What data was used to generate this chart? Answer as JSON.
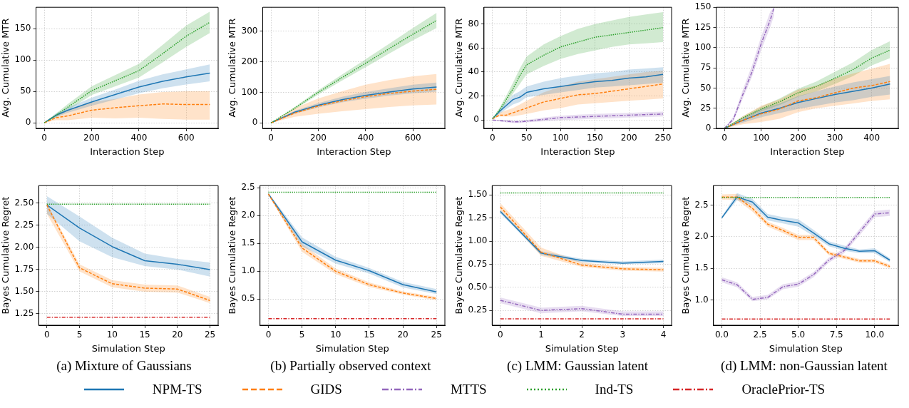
{
  "chart_data": [
    {
      "type": "line",
      "legend": "bottom",
      "xlabel": "Interaction Step",
      "ylabel": "Avg. Cumulative MTR",
      "xlim": [
        -35,
        735
      ],
      "xticks": [
        0,
        200,
        400,
        600
      ],
      "ylim": [
        -9,
        184
      ],
      "yticks": [
        0,
        50,
        100,
        150
      ],
      "grid": true,
      "series": [
        {
          "name": "NPM-TS",
          "color": "#1f77b4",
          "line_style": "solid",
          "x": [
            0,
            50,
            100,
            200,
            300,
            400,
            500,
            600,
            700
          ],
          "values": [
            0,
            12,
            20,
            33,
            45,
            57,
            66,
            73,
            79
          ],
          "lower": [
            0,
            9,
            16,
            27,
            37,
            47,
            55,
            61,
            66
          ],
          "upper": [
            0,
            15,
            24,
            40,
            53,
            67,
            77,
            85,
            93
          ]
        },
        {
          "name": "GIDS",
          "color": "#ff7f0e",
          "line_style": "dashed",
          "x": [
            0,
            50,
            100,
            200,
            300,
            400,
            500,
            600,
            700
          ],
          "values": [
            0,
            8,
            11,
            20,
            24,
            27,
            30,
            29,
            29
          ],
          "lower": [
            0,
            4,
            4,
            8,
            7,
            8,
            6,
            5,
            5
          ],
          "upper": [
            0,
            13,
            20,
            33,
            38,
            45,
            49,
            50,
            50
          ]
        },
        {
          "name": "Ind-TS",
          "color": "#2ca02c",
          "line_style": "dotted",
          "x": [
            0,
            50,
            100,
            200,
            300,
            400,
            500,
            600,
            700
          ],
          "values": [
            0,
            12,
            25,
            51,
            67,
            83,
            110,
            138,
            160
          ],
          "lower": [
            0,
            9,
            20,
            44,
            58,
            72,
            96,
            121,
            143
          ],
          "upper": [
            0,
            15,
            30,
            58,
            76,
            94,
            124,
            155,
            177
          ]
        }
      ]
    },
    {
      "type": "line",
      "legend": "bottom",
      "xlabel": "Interaction Step",
      "ylabel": "Avg. Cumulative MTR",
      "xlim": [
        -35,
        735
      ],
      "xticks": [
        0,
        200,
        400,
        600
      ],
      "ylim": [
        -18,
        378
      ],
      "yticks": [
        0,
        100,
        200,
        300
      ],
      "grid": true,
      "series": [
        {
          "name": "NPM-TS",
          "color": "#1f77b4",
          "line_style": "solid",
          "x": [
            0,
            100,
            200,
            300,
            400,
            500,
            600,
            700
          ],
          "values": [
            0,
            35,
            58,
            76,
            90,
            101,
            111,
            117
          ],
          "lower": [
            0,
            30,
            51,
            67,
            79,
            89,
            97,
            102
          ],
          "upper": [
            0,
            40,
            65,
            85,
            101,
            113,
            125,
            132
          ]
        },
        {
          "name": "GIDS",
          "color": "#ff7f0e",
          "line_style": "dashed",
          "x": [
            0,
            100,
            200,
            300,
            400,
            500,
            600,
            700
          ],
          "values": [
            0,
            32,
            55,
            72,
            86,
            96,
            104,
            110
          ],
          "lower": [
            0,
            20,
            30,
            38,
            45,
            52,
            57,
            60
          ],
          "upper": [
            0,
            48,
            80,
            103,
            125,
            140,
            152,
            160
          ]
        },
        {
          "name": "Ind-TS",
          "color": "#2ca02c",
          "line_style": "dotted",
          "x": [
            0,
            100,
            200,
            300,
            400,
            500,
            600,
            700
          ],
          "values": [
            0,
            48,
            100,
            148,
            195,
            243,
            290,
            335
          ],
          "lower": [
            0,
            44,
            93,
            138,
            182,
            227,
            270,
            310
          ],
          "upper": [
            0,
            52,
            107,
            158,
            208,
            259,
            310,
            360
          ]
        }
      ]
    },
    {
      "type": "line",
      "legend": "bottom",
      "xlabel": "Interaction Step",
      "ylabel": "Avg. Cumulative MTR",
      "xlim": [
        -12.5,
        262.5
      ],
      "xticks": [
        0,
        50,
        100,
        150,
        200,
        250
      ],
      "ylim": [
        -7,
        94
      ],
      "yticks": [
        0,
        20,
        40,
        60,
        80
      ],
      "grid": true,
      "series": [
        {
          "name": "NPM-TS",
          "color": "#1f77b4",
          "line_style": "solid",
          "x": [
            0,
            10,
            20,
            30,
            40,
            50,
            75,
            100,
            125,
            150,
            175,
            200,
            225,
            250
          ],
          "values": [
            1,
            7,
            12,
            17,
            19,
            23,
            26,
            28,
            30,
            32,
            33,
            35,
            36,
            38
          ],
          "lower": [
            1,
            5,
            9,
            13,
            15,
            19,
            21,
            23,
            25,
            27,
            28,
            29,
            30,
            31
          ],
          "upper": [
            1,
            9,
            15,
            21,
            24,
            28,
            32,
            35,
            37,
            39,
            40,
            42,
            43,
            44
          ]
        },
        {
          "name": "GIDS",
          "color": "#ff7f0e",
          "line_style": "dashed",
          "x": [
            0,
            10,
            20,
            30,
            40,
            50,
            75,
            100,
            125,
            150,
            175,
            200,
            225,
            250
          ],
          "values": [
            1,
            4,
            4,
            6,
            8,
            10,
            15,
            18,
            21,
            22,
            24,
            26,
            28,
            30
          ],
          "lower": [
            1,
            3,
            3,
            3,
            4,
            5,
            8,
            10,
            13,
            14,
            15,
            16,
            17,
            18
          ],
          "upper": [
            1,
            6,
            8,
            10,
            13,
            16,
            23,
            28,
            32,
            34,
            36,
            38,
            40,
            41
          ]
        },
        {
          "name": "MTTS",
          "color": "#9467bd",
          "line_style": "dashdot",
          "x": [
            0,
            10,
            20,
            30,
            40,
            50,
            75,
            100,
            125,
            150,
            175,
            200,
            225,
            250
          ],
          "values": [
            0,
            -0.5,
            -1,
            -1.5,
            -1.5,
            -1,
            0.5,
            2,
            2.5,
            3,
            3.5,
            4,
            4.5,
            5
          ],
          "lower": [
            0,
            -1,
            -2,
            -2.5,
            -2.5,
            -2,
            -1,
            0,
            0.5,
            1,
            1.5,
            2,
            2.5,
            3
          ],
          "upper": [
            0,
            0,
            0,
            -0.5,
            -0.5,
            0,
            2,
            3.5,
            4.5,
            5,
            5.5,
            6,
            6.5,
            7
          ]
        },
        {
          "name": "Ind-TS",
          "color": "#2ca02c",
          "line_style": "dotted",
          "x": [
            0,
            10,
            20,
            30,
            40,
            50,
            75,
            100,
            125,
            150,
            175,
            200,
            225,
            250
          ],
          "values": [
            1,
            8,
            17,
            26,
            37,
            46,
            54,
            61,
            65,
            69,
            71,
            73,
            75,
            77
          ],
          "lower": [
            1,
            6,
            14,
            22,
            30,
            38,
            45,
            51,
            55,
            58,
            61,
            63,
            64,
            65
          ],
          "upper": [
            1,
            10,
            20,
            31,
            43,
            53,
            63,
            70,
            76,
            80,
            83,
            86,
            88,
            90
          ]
        }
      ]
    },
    {
      "type": "line",
      "legend": "bottom",
      "xlabel": "Interaction Step",
      "ylabel": "Avg. Cumulative MTR",
      "xlim": [
        -22.5,
        472.5
      ],
      "xticks": [
        0,
        100,
        200,
        300,
        400
      ],
      "ylim": [
        0,
        150
      ],
      "yticks": [
        0,
        25,
        50,
        75,
        100,
        125,
        150
      ],
      "grid": true,
      "series": [
        {
          "name": "NPM-TS",
          "color": "#1f77b4",
          "line_style": "solid",
          "x": [
            0,
            50,
            100,
            150,
            200,
            250,
            300,
            350,
            400,
            450
          ],
          "values": [
            0,
            10,
            19,
            25,
            32,
            37,
            42,
            46,
            50,
            55
          ],
          "lower": [
            0,
            7,
            14,
            19,
            24,
            28,
            32,
            35,
            39,
            42
          ],
          "upper": [
            0,
            13,
            24,
            31,
            40,
            46,
            52,
            57,
            61,
            65
          ]
        },
        {
          "name": "GIDS",
          "color": "#ff7f0e",
          "line_style": "dashed",
          "x": [
            0,
            50,
            100,
            150,
            200,
            250,
            300,
            350,
            400,
            450
          ],
          "values": [
            0,
            10,
            18,
            24,
            34,
            38,
            44,
            50,
            53,
            58
          ],
          "lower": [
            0,
            5,
            8,
            12,
            20,
            25,
            28,
            31,
            34,
            36
          ],
          "upper": [
            0,
            15,
            28,
            36,
            48,
            53,
            62,
            68,
            74,
            80
          ]
        },
        {
          "name": "MTTS",
          "color": "#9467bd",
          "line_style": "dashdot",
          "x": [
            0,
            25,
            50,
            75,
            100,
            125,
            135
          ],
          "values": [
            0,
            12,
            42,
            70,
            105,
            135,
            150
          ],
          "lower": [
            0,
            9,
            37,
            64,
            97,
            126,
            140
          ],
          "upper": [
            0,
            15,
            48,
            78,
            114,
            145,
            150
          ]
        },
        {
          "name": "Ind-TS",
          "color": "#2ca02c",
          "line_style": "dotted",
          "x": [
            0,
            50,
            100,
            150,
            200,
            250,
            300,
            350,
            400,
            450
          ],
          "values": [
            0,
            13,
            24,
            33,
            44,
            52,
            62,
            73,
            87,
            97
          ],
          "lower": [
            0,
            11,
            21,
            29,
            39,
            46,
            55,
            65,
            78,
            87
          ],
          "upper": [
            0,
            15,
            27,
            37,
            49,
            58,
            70,
            82,
            97,
            108
          ]
        }
      ]
    },
    {
      "type": "line",
      "xlabel": "Simulation Step",
      "ylabel": "Bayes Cumulative Regret",
      "annotations": [
        "(a) Mixture of Gaussians"
      ],
      "legend": "bottom",
      "x": [
        0,
        5,
        10,
        15,
        20,
        25
      ],
      "xlim": [
        -1.25,
        26.25
      ],
      "xticks": [
        0,
        5,
        10,
        15,
        20,
        25
      ],
      "ylim": [
        1.12,
        2.7
      ],
      "yticks": [
        {
          "value": 1.25,
          "label": "1.25"
        },
        {
          "value": 1.5,
          "label": "1.50"
        },
        {
          "value": 1.75,
          "label": "1.75"
        },
        {
          "value": 2,
          "label": "2.00"
        },
        {
          "value": 2.25,
          "label": "2.25"
        },
        {
          "value": 2.5,
          "label": "2.50"
        }
      ],
      "grid": true,
      "series": [
        {
          "name": "NPM-TS",
          "color": "#1f77b4",
          "line_style": "solid",
          "values": [
            2.48,
            2.22,
            2.01,
            1.85,
            1.81,
            1.75
          ],
          "lower": [
            2.38,
            2.07,
            1.89,
            1.79,
            1.75,
            1.67
          ],
          "upper": [
            2.58,
            2.35,
            2.11,
            1.93,
            1.87,
            1.83
          ]
        },
        {
          "name": "GIDS",
          "color": "#ff7f0e",
          "line_style": "dashed",
          "values": [
            2.48,
            1.77,
            1.59,
            1.54,
            1.53,
            1.4
          ],
          "lower": [
            2.38,
            1.73,
            1.55,
            1.5,
            1.49,
            1.37
          ],
          "upper": [
            2.5,
            1.81,
            1.63,
            1.58,
            1.57,
            1.44
          ]
        },
        {
          "name": "Ind-TS",
          "color": "#2ca02c",
          "line_style": "dotted",
          "values": [
            2.49,
            2.49,
            2.49,
            2.49,
            2.49,
            2.49
          ]
        },
        {
          "name": "OraclePrior-TS",
          "color": "#d62728",
          "line_style": "dashdot",
          "values": [
            1.21,
            1.21,
            1.21,
            1.21,
            1.21,
            1.21
          ]
        }
      ]
    },
    {
      "type": "line",
      "xlabel": "Simulation Step",
      "ylabel": "Bayes Cumulative Regret",
      "annotations": [
        "(b) Partially observed context"
      ],
      "legend": "bottom",
      "x": [
        0,
        5,
        10,
        15,
        20,
        25
      ],
      "xlim": [
        -1.25,
        26.25
      ],
      "xticks": [
        0,
        5,
        10,
        15,
        20,
        25
      ],
      "ylim": [
        0.03,
        2.54
      ],
      "yticks": [
        0.5,
        {
          "value": 1,
          "label": "1.0"
        },
        1.5,
        {
          "value": 2,
          "label": "2.0"
        },
        2.5
      ],
      "grid": true,
      "series": [
        {
          "name": "NPM-TS",
          "color": "#1f77b4",
          "line_style": "solid",
          "values": [
            2.39,
            1.53,
            1.2,
            1.01,
            0.76,
            0.63
          ],
          "lower": [
            2.37,
            1.45,
            1.14,
            0.96,
            0.71,
            0.59
          ],
          "upper": [
            2.41,
            1.61,
            1.26,
            1.06,
            0.81,
            0.68
          ]
        },
        {
          "name": "GIDS",
          "color": "#ff7f0e",
          "line_style": "dashed",
          "values": [
            2.39,
            1.42,
            1.0,
            0.76,
            0.61,
            0.51
          ],
          "lower": [
            2.37,
            1.35,
            0.95,
            0.72,
            0.58,
            0.48
          ],
          "upper": [
            2.41,
            1.49,
            1.05,
            0.8,
            0.64,
            0.54
          ]
        },
        {
          "name": "Ind-TS",
          "color": "#2ca02c",
          "line_style": "dotted",
          "values": [
            2.42,
            2.42,
            2.42,
            2.42,
            2.42,
            2.42
          ]
        },
        {
          "name": "OraclePrior-TS",
          "color": "#d62728",
          "line_style": "dashdot",
          "values": [
            0.15,
            0.15,
            0.15,
            0.15,
            0.15,
            0.15
          ]
        }
      ]
    },
    {
      "type": "line",
      "xlabel": "Simulation Step",
      "ylabel": "Bayes Cumulative Regret",
      "annotations": [
        "(c) LMM: Gaussian latent"
      ],
      "legend": "bottom",
      "x": [
        0,
        1,
        2,
        3,
        4
      ],
      "xlim": [
        -0.2,
        4.2
      ],
      "xticks": [
        0,
        1,
        2,
        3,
        4
      ],
      "ylim": [
        0.09,
        1.6
      ],
      "yticks": [
        0.25,
        {
          "value": 0.5,
          "label": "0.50"
        },
        0.75,
        {
          "value": 1,
          "label": "1.00"
        },
        1.25,
        {
          "value": 1.5,
          "label": "1.50"
        }
      ],
      "grid": true,
      "series": [
        {
          "name": "NPM-TS",
          "color": "#1f77b4",
          "line_style": "solid",
          "values": [
            1.32,
            0.87,
            0.79,
            0.76,
            0.78
          ],
          "lower": [
            1.3,
            0.85,
            0.77,
            0.75,
            0.76
          ],
          "upper": [
            1.34,
            0.89,
            0.81,
            0.78,
            0.8
          ]
        },
        {
          "name": "GIDS",
          "color": "#ff7f0e",
          "line_style": "dashed",
          "values": [
            1.37,
            0.88,
            0.74,
            0.7,
            0.69
          ],
          "lower": [
            1.33,
            0.84,
            0.72,
            0.68,
            0.67
          ],
          "upper": [
            1.41,
            0.93,
            0.77,
            0.72,
            0.71
          ]
        },
        {
          "name": "MTTS",
          "color": "#9467bd",
          "line_style": "dashdot",
          "values": [
            0.36,
            0.25,
            0.27,
            0.21,
            0.21
          ],
          "lower": [
            0.33,
            0.22,
            0.24,
            0.19,
            0.19
          ],
          "upper": [
            0.39,
            0.28,
            0.3,
            0.24,
            0.24
          ]
        },
        {
          "name": "Ind-TS",
          "color": "#2ca02c",
          "line_style": "dotted",
          "values": [
            1.52,
            1.52,
            1.52,
            1.52,
            1.52
          ]
        },
        {
          "name": "OraclePrior-TS",
          "color": "#d62728",
          "line_style": "dashdot",
          "values": [
            0.16,
            0.16,
            0.16,
            0.16,
            0.16
          ]
        }
      ]
    },
    {
      "type": "line",
      "xlabel": "Simulation Step",
      "ylabel": "Bayes Cumulative Regret",
      "annotations": [
        "(d) LMM: non-Gaussian latent"
      ],
      "legend": "bottom",
      "x": [
        0,
        1,
        2,
        3,
        4,
        5,
        6,
        7,
        8,
        9,
        10,
        11
      ],
      "xlim": [
        -0.55,
        11.55
      ],
      "xticks": [
        {
          "value": 0,
          "label": "0.0"
        },
        2.5,
        {
          "value": 5,
          "label": "5.0"
        },
        7.5,
        {
          "value": 10,
          "label": "10.0"
        }
      ],
      "ylim": [
        0.6,
        2.81
      ],
      "yticks": [
        {
          "value": 1,
          "label": "1.0"
        },
        1.5,
        {
          "value": 2,
          "label": "2.0"
        },
        2.5
      ],
      "grid": true,
      "series": [
        {
          "name": "NPM-TS",
          "color": "#1f77b4",
          "line_style": "solid",
          "values": [
            2.3,
            2.63,
            2.55,
            2.31,
            2.26,
            2.22,
            2.06,
            1.89,
            1.82,
            1.77,
            1.78,
            1.63
          ],
          "lower": [
            2.28,
            2.58,
            2.5,
            2.26,
            2.21,
            2.16,
            2.01,
            1.85,
            1.78,
            1.74,
            1.74,
            1.6
          ],
          "upper": [
            2.32,
            2.69,
            2.6,
            2.36,
            2.31,
            2.28,
            2.11,
            1.93,
            1.86,
            1.8,
            1.82,
            1.66
          ]
        },
        {
          "name": "GIDS",
          "color": "#ff7f0e",
          "line_style": "dashed",
          "values": [
            2.63,
            2.63,
            2.45,
            2.2,
            2.1,
            1.99,
            1.99,
            1.74,
            1.68,
            1.62,
            1.62,
            1.53
          ],
          "lower": [
            2.59,
            2.58,
            2.4,
            2.16,
            2.06,
            1.95,
            1.95,
            1.71,
            1.65,
            1.59,
            1.59,
            1.5
          ],
          "upper": [
            2.67,
            2.68,
            2.5,
            2.24,
            2.14,
            2.03,
            2.03,
            1.77,
            1.71,
            1.65,
            1.65,
            1.56
          ]
        },
        {
          "name": "MTTS",
          "color": "#9467bd",
          "line_style": "dashdot",
          "values": [
            1.32,
            1.24,
            1.01,
            1.04,
            1.21,
            1.25,
            1.4,
            1.63,
            1.78,
            2.07,
            2.36,
            2.38
          ],
          "lower": [
            1.28,
            1.2,
            0.98,
            1.01,
            1.17,
            1.21,
            1.36,
            1.59,
            1.74,
            2.02,
            2.31,
            2.33
          ],
          "upper": [
            1.36,
            1.28,
            1.05,
            1.08,
            1.25,
            1.29,
            1.44,
            1.67,
            1.82,
            2.12,
            2.41,
            2.43
          ]
        },
        {
          "name": "Ind-TS",
          "color": "#2ca02c",
          "line_style": "dotted",
          "values": [
            2.62,
            2.62,
            2.62,
            2.62,
            2.62,
            2.62,
            2.62,
            2.62,
            2.62,
            2.62,
            2.62,
            2.62
          ]
        },
        {
          "name": "OraclePrior-TS",
          "color": "#d62728",
          "line_style": "dashdot",
          "values": [
            0.7,
            0.7,
            0.7,
            0.7,
            0.7,
            0.7,
            0.7,
            0.7,
            0.7,
            0.7,
            0.7,
            0.7
          ]
        }
      ]
    }
  ]
}
